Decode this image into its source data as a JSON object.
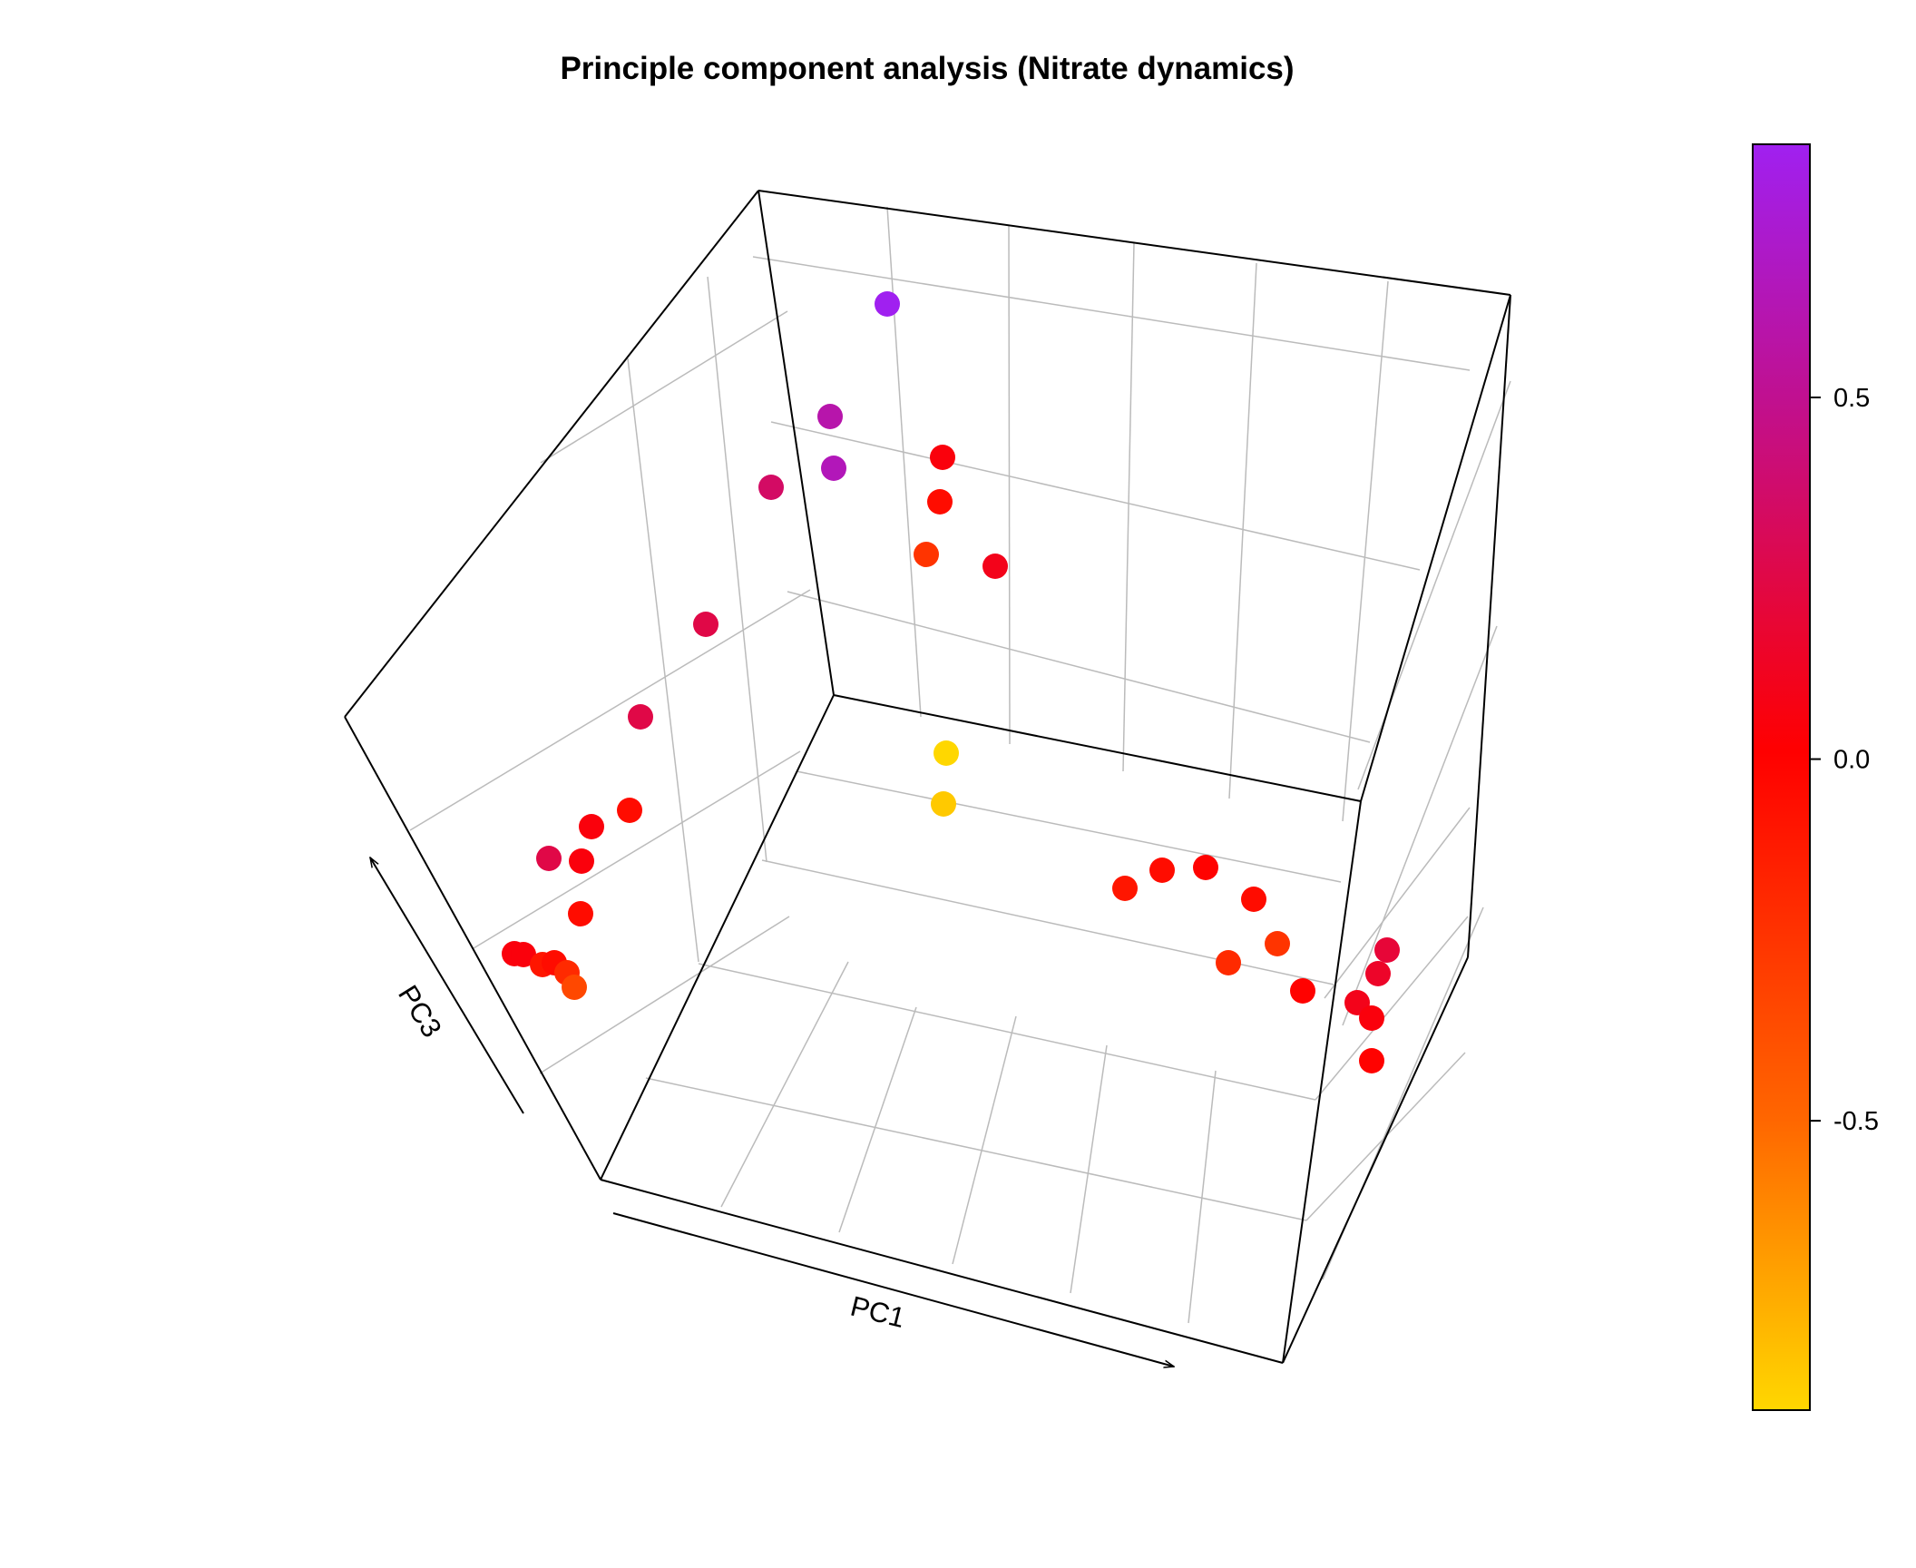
{
  "chart_data": {
    "type": "scatter",
    "dimensions": 3,
    "title": "Principle component analysis (Nitrate dynamics)",
    "xlabel": "PC1",
    "zlabel": "PC3",
    "grid": true,
    "colorbar": {
      "range": [
        -0.9,
        0.85
      ],
      "ticks": [
        0.5,
        0.0,
        -0.5
      ],
      "tick_labels": [
        "0.5",
        "0.0",
        "-0.5"
      ],
      "colors": [
        "#ffd700",
        "#ff6600",
        "#ff0000",
        "#c01090",
        "#a020f0"
      ]
    },
    "points": [
      {
        "value": 0.85
      },
      {
        "value": 0.6
      },
      {
        "value": 0.65
      },
      {
        "value": 0.35
      },
      {
        "value": 0.05
      },
      {
        "value": -0.05
      },
      {
        "value": -0.25
      },
      {
        "value": 0.1
      },
      {
        "value": 0.25
      },
      {
        "value": 0.25
      },
      {
        "value": -0.05
      },
      {
        "value": 0.05
      },
      {
        "value": 0.25
      },
      {
        "value": 0.05
      },
      {
        "value": -0.05
      },
      {
        "value": 0.05
      },
      {
        "value": 0.05
      },
      {
        "value": -0.1
      },
      {
        "value": -0.05
      },
      {
        "value": -0.2
      },
      {
        "value": -0.35
      },
      {
        "value": -0.9
      },
      {
        "value": -0.85
      },
      {
        "value": -0.1
      },
      {
        "value": -0.05
      },
      {
        "value": 0.0
      },
      {
        "value": -0.05
      },
      {
        "value": -0.2
      },
      {
        "value": -0.25
      },
      {
        "value": 0.0
      },
      {
        "value": 0.2
      },
      {
        "value": 0.15
      },
      {
        "value": 0.1
      },
      {
        "value": 0.05
      },
      {
        "value": 0.0
      }
    ]
  }
}
